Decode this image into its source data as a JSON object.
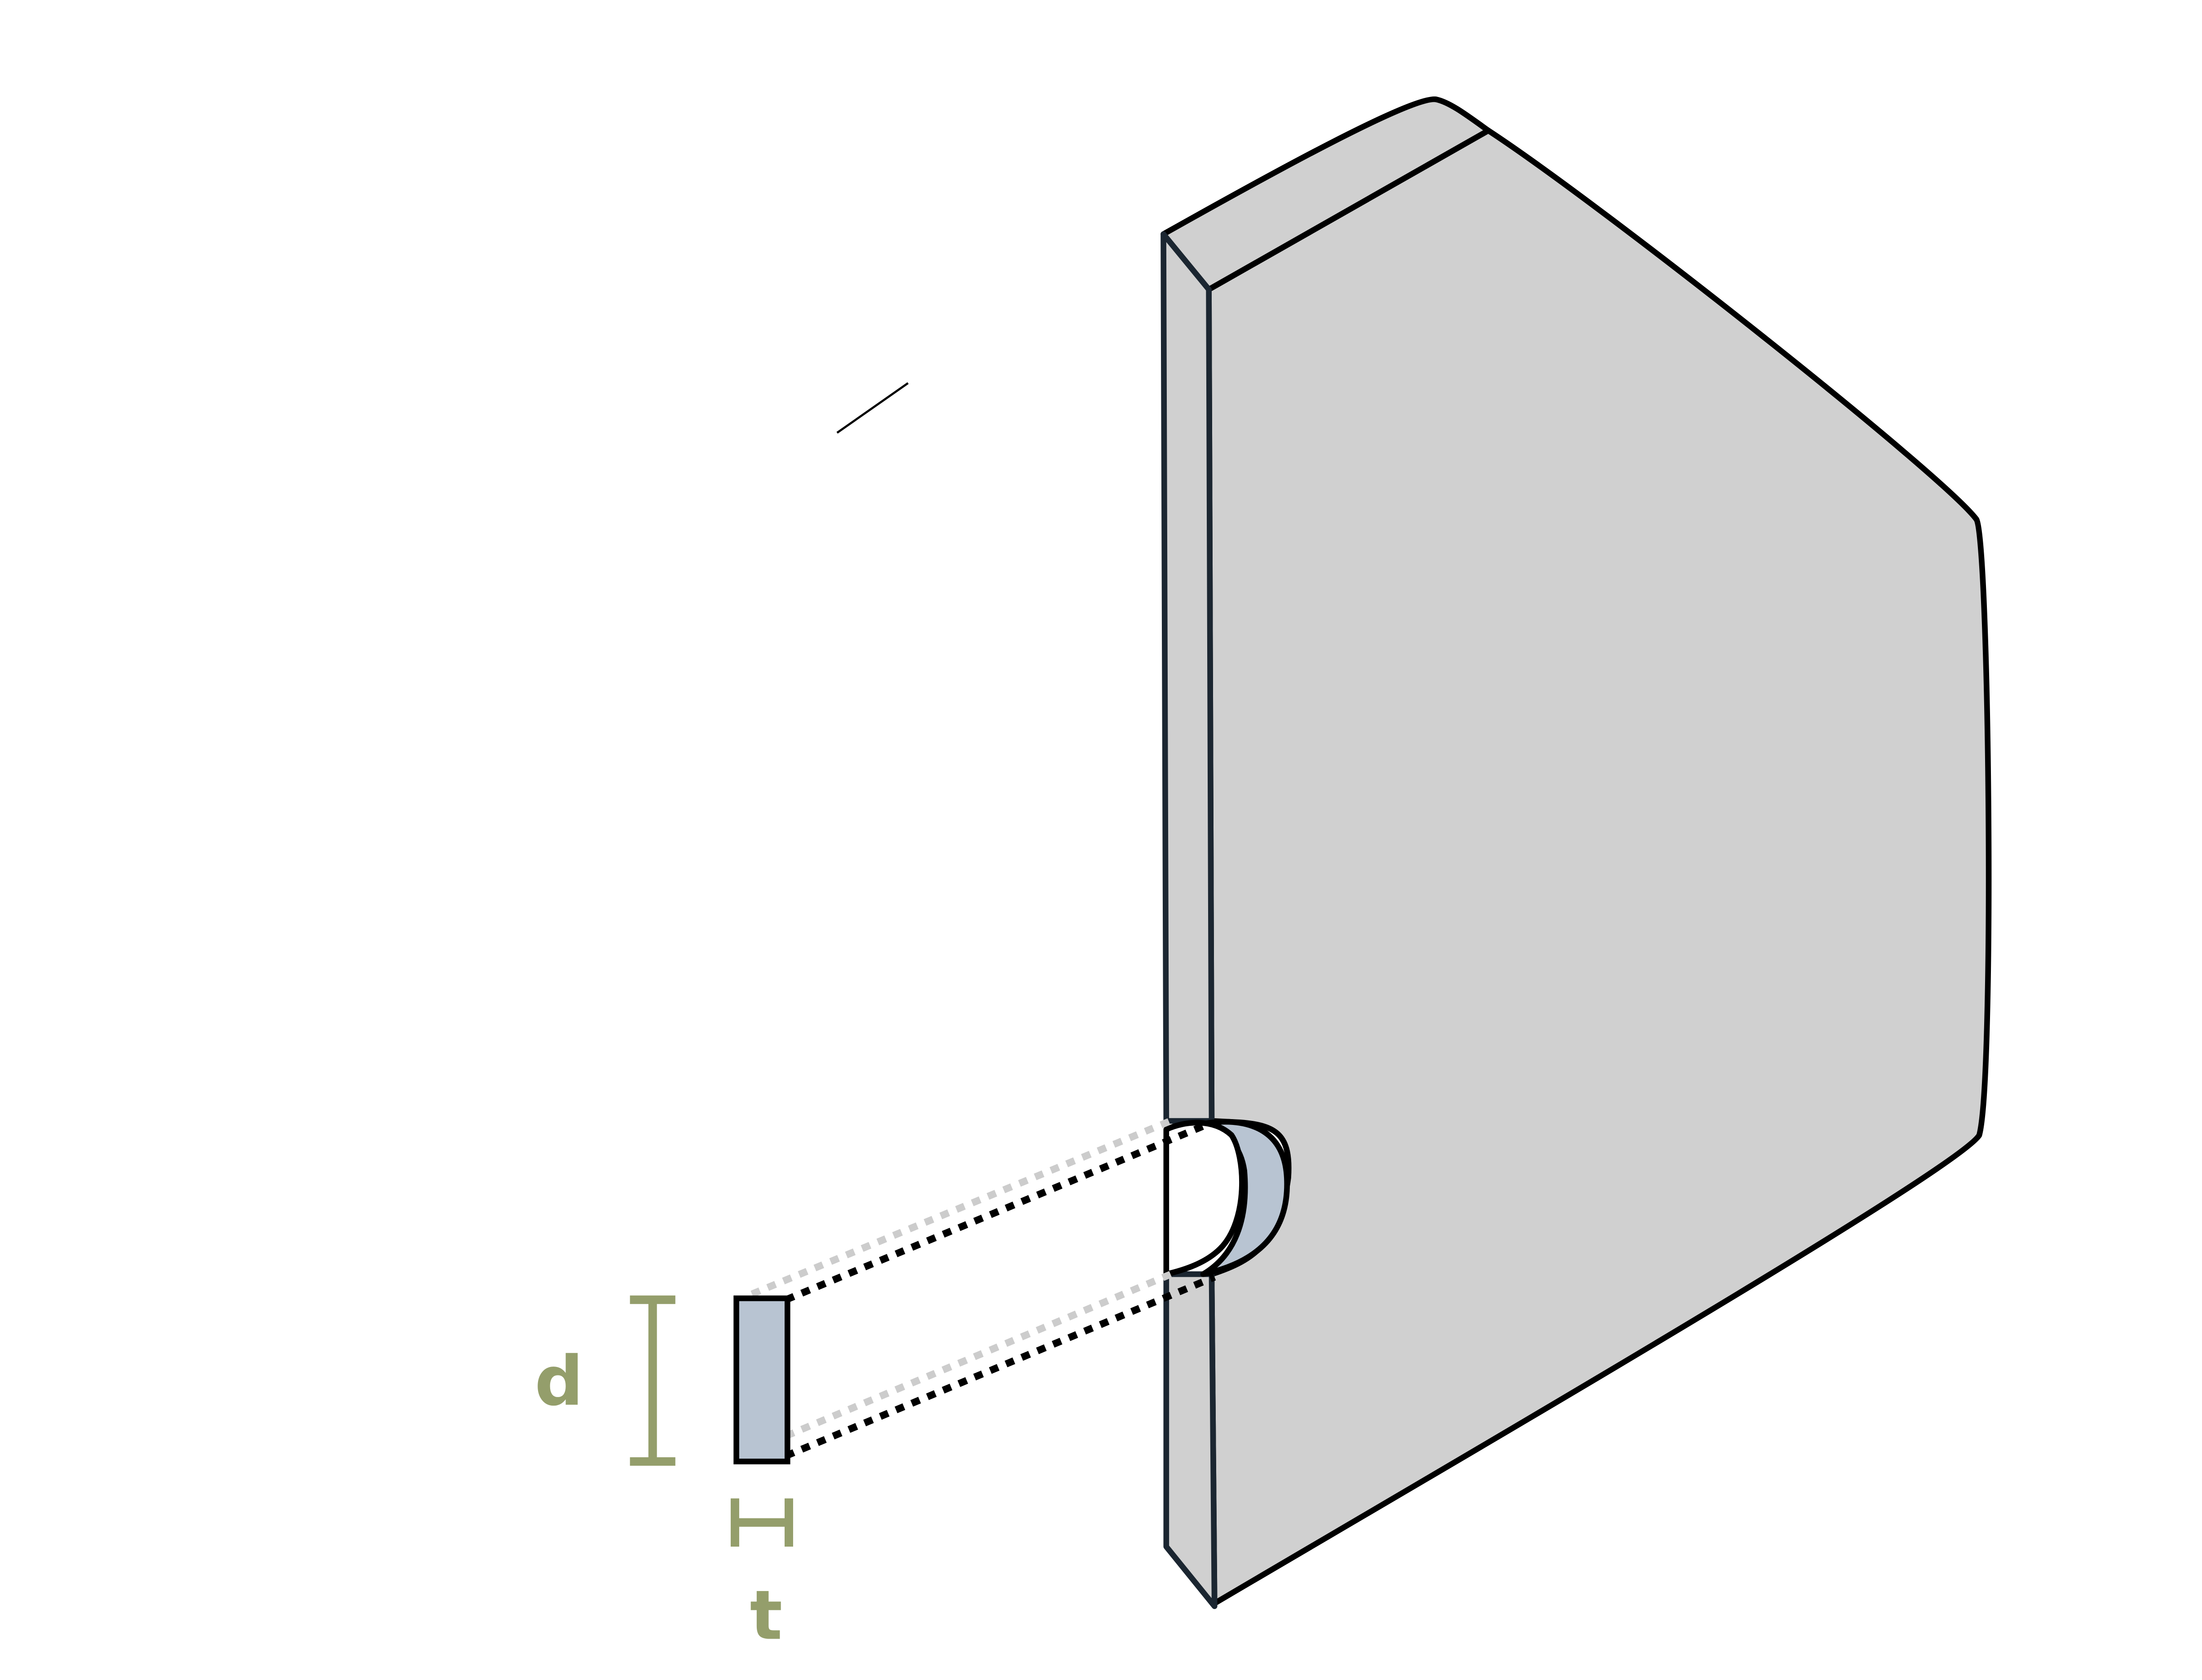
{
  "diagram": {
    "labels": {
      "depth": "d",
      "thickness": "t"
    },
    "colors": {
      "wall_fill": "#d0d0d0",
      "wall_edge": "#1b2631",
      "outline": "#000000",
      "section_fill": "#b8c4d2",
      "dimension_color": "#949e6b",
      "projection_light": "#cccccc",
      "projection_dark": "#000000"
    }
  }
}
